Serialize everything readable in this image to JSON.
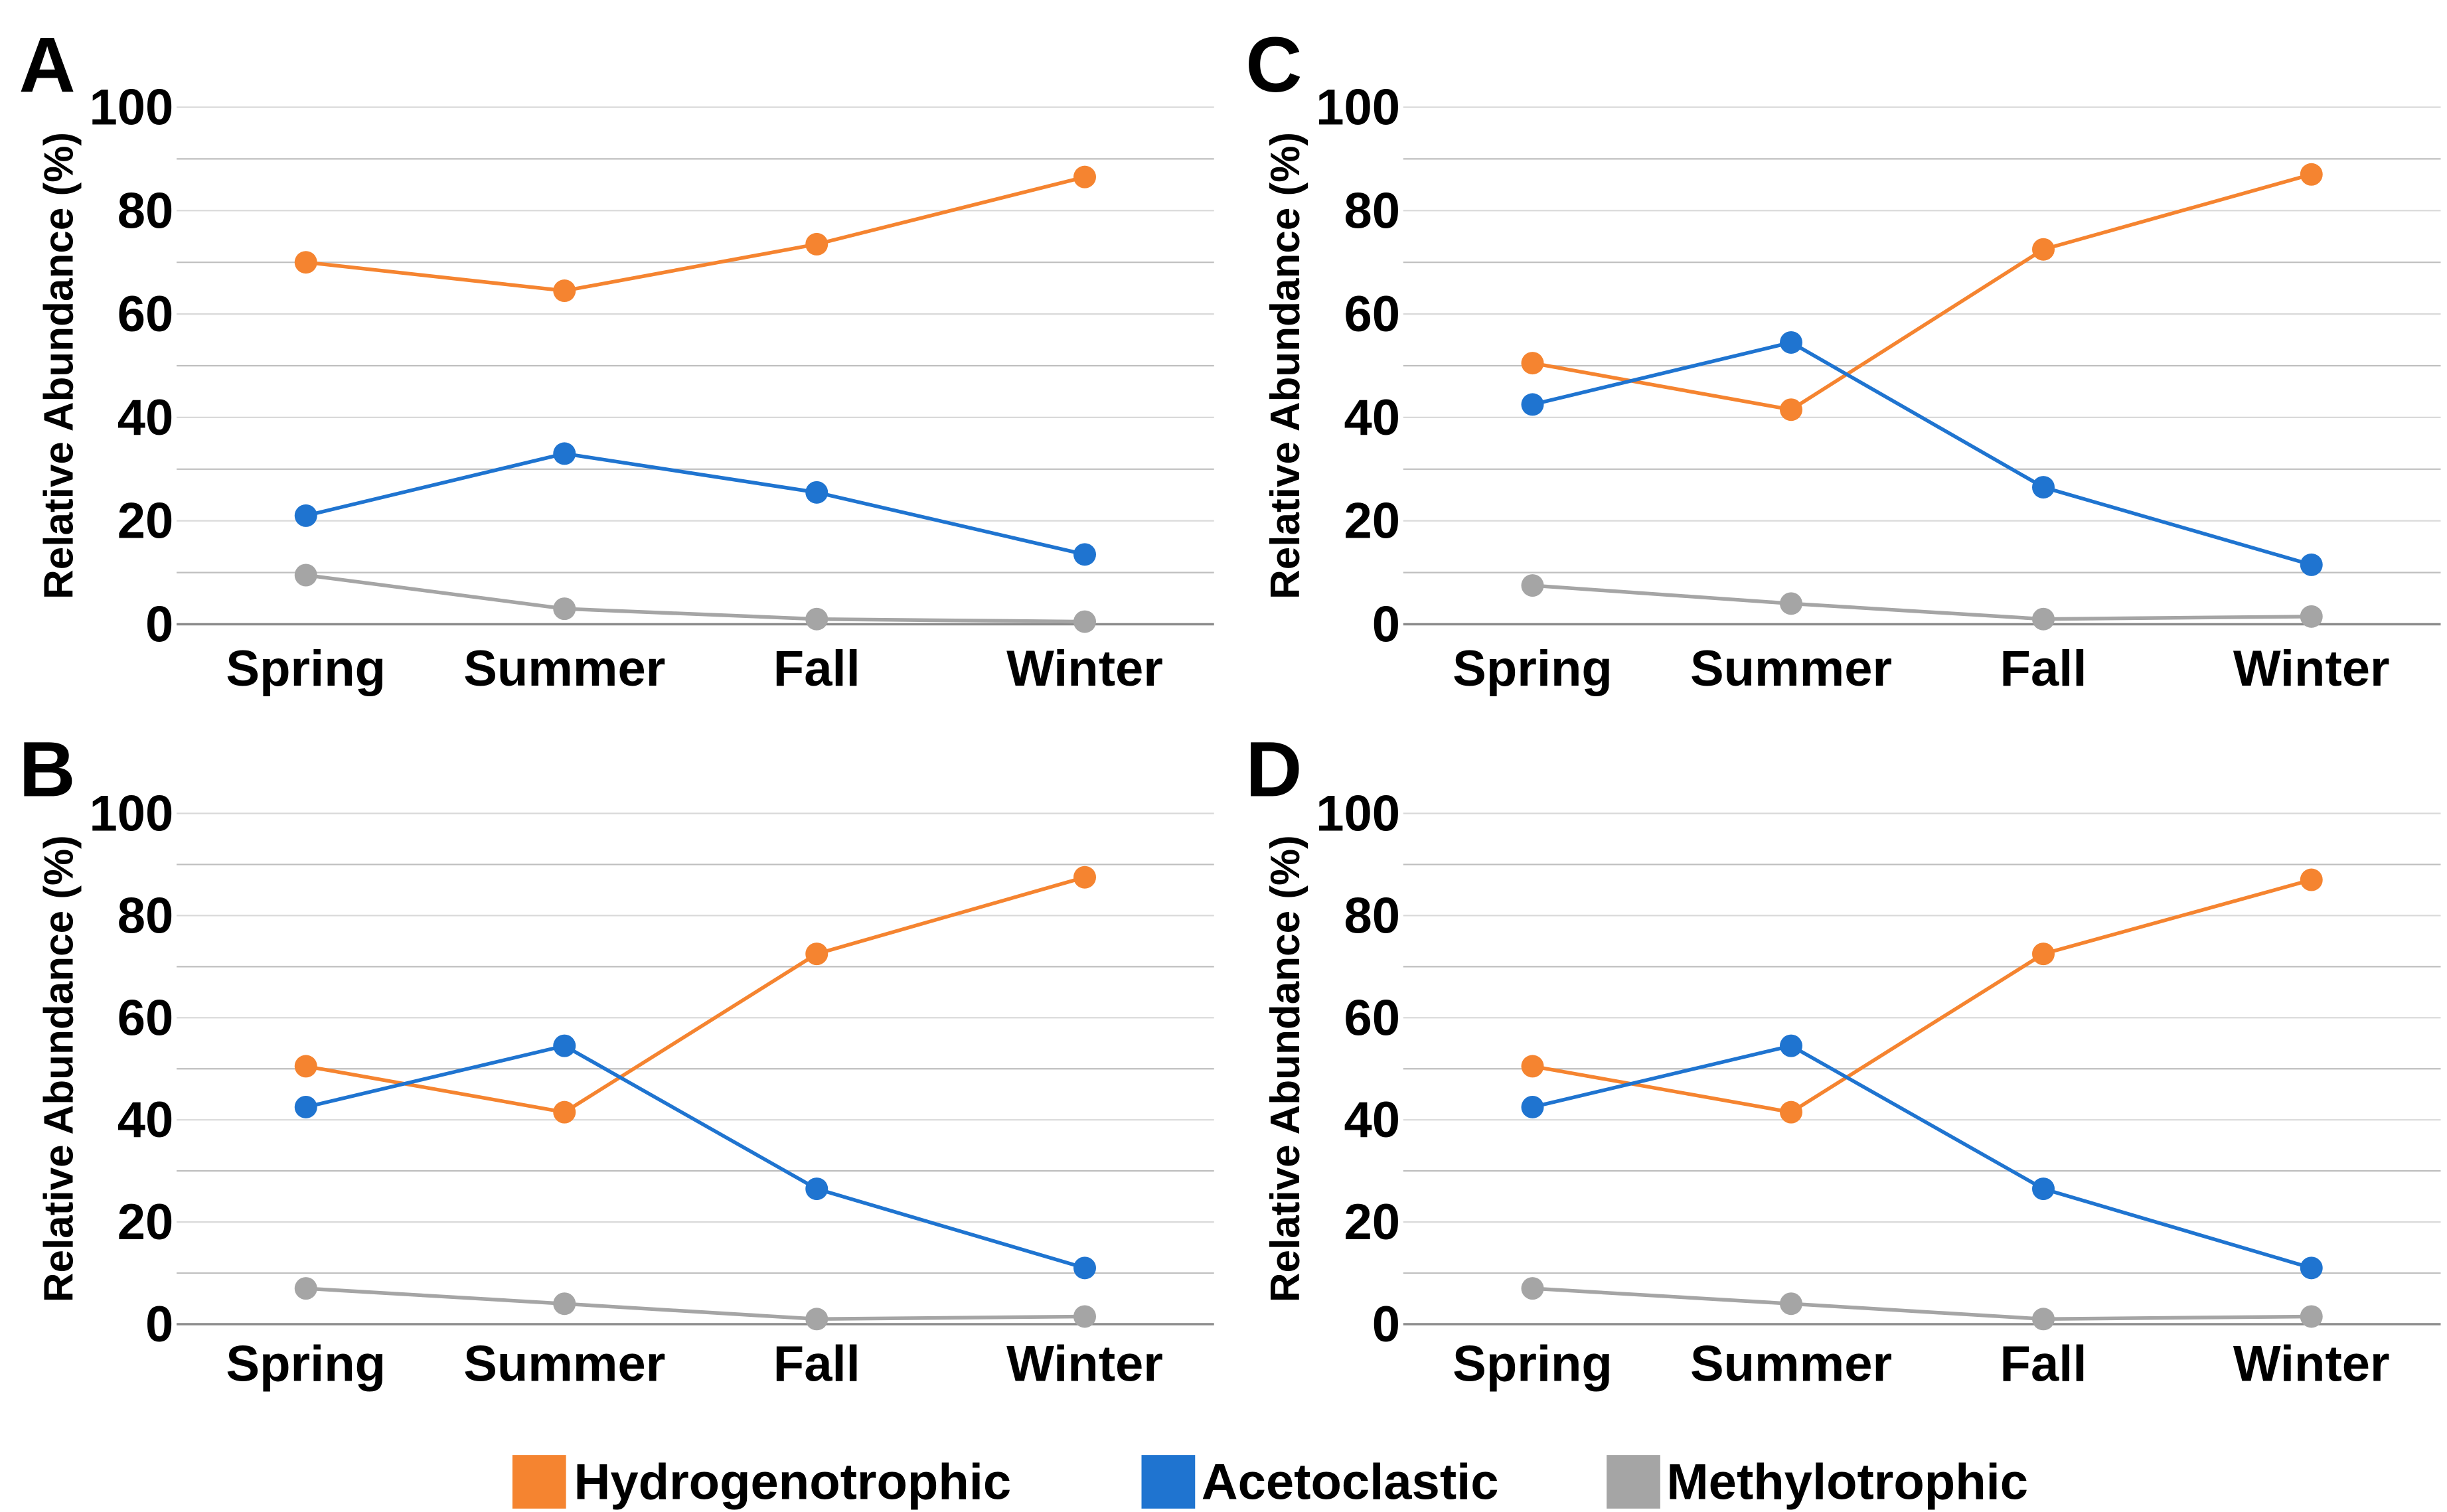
{
  "chart_data": [
    {
      "panel": "A",
      "type": "line",
      "categories": [
        "Spring",
        "Summer",
        "Fall",
        "Winter"
      ],
      "ylabel": "Relative Abundance (%)",
      "ylim": [
        0,
        100
      ],
      "yticks": [
        0,
        20,
        40,
        60,
        80,
        100
      ],
      "grid": true,
      "series": [
        {
          "name": "Hydrogenotrophic",
          "color": "#F58430",
          "values": [
            70,
            64.5,
            73.5,
            86.5
          ]
        },
        {
          "name": "Acetoclastic",
          "color": "#1F74D0",
          "values": [
            21,
            33,
            25.5,
            13.5
          ]
        },
        {
          "name": "Methylotrophic",
          "color": "#A5A5A5",
          "values": [
            9.5,
            3,
            1,
            0.5
          ]
        }
      ]
    },
    {
      "panel": "C",
      "type": "line",
      "categories": [
        "Spring",
        "Summer",
        "Fall",
        "Winter"
      ],
      "ylabel": "Relative Abundance (%)",
      "ylim": [
        0,
        100
      ],
      "yticks": [
        0,
        20,
        40,
        60,
        80,
        100
      ],
      "grid": true,
      "series": [
        {
          "name": "Hydrogenotrophic",
          "color": "#F58430",
          "values": [
            50.5,
            41.5,
            72.5,
            87
          ]
        },
        {
          "name": "Acetoclastic",
          "color": "#1F74D0",
          "values": [
            42.5,
            54.5,
            26.5,
            11.5
          ]
        },
        {
          "name": "Methylotrophic",
          "color": "#A5A5A5",
          "values": [
            7.5,
            4,
            1,
            1.5
          ]
        }
      ]
    },
    {
      "panel": "B",
      "type": "line",
      "categories": [
        "Spring",
        "Summer",
        "Fall",
        "Winter"
      ],
      "ylabel": "Relative Abundance (%)",
      "ylim": [
        0,
        100
      ],
      "yticks": [
        0,
        20,
        40,
        60,
        80,
        100
      ],
      "grid": true,
      "series": [
        {
          "name": "Hydrogenotrophic",
          "color": "#F58430",
          "values": [
            50.5,
            41.5,
            72.5,
            87.5
          ]
        },
        {
          "name": "Acetoclastic",
          "color": "#1F74D0",
          "values": [
            42.5,
            54.5,
            26.5,
            11
          ]
        },
        {
          "name": "Methylotrophic",
          "color": "#A5A5A5",
          "values": [
            7,
            4,
            1,
            1.5
          ]
        }
      ]
    },
    {
      "panel": "D",
      "type": "line",
      "categories": [
        "Spring",
        "Summer",
        "Fall",
        "Winter"
      ],
      "ylabel": "Relative Abundance (%)",
      "ylim": [
        0,
        100
      ],
      "yticks": [
        0,
        20,
        40,
        60,
        80,
        100
      ],
      "grid": true,
      "series": [
        {
          "name": "Hydrogenotrophic",
          "color": "#F58430",
          "values": [
            50.5,
            41.5,
            72.5,
            87
          ]
        },
        {
          "name": "Acetoclastic",
          "color": "#1F74D0",
          "values": [
            42.5,
            54.5,
            26.5,
            11
          ]
        },
        {
          "name": "Methylotrophic",
          "color": "#A5A5A5",
          "values": [
            7,
            4,
            1,
            1.5
          ]
        }
      ]
    }
  ],
  "legend": {
    "position": "bottom",
    "items": [
      {
        "name": "Hydrogenotrophic",
        "color": "#F58430"
      },
      {
        "name": "Acetoclastic",
        "color": "#1F74D0"
      },
      {
        "name": "Methylotrophic",
        "color": "#A5A5A5"
      }
    ]
  }
}
